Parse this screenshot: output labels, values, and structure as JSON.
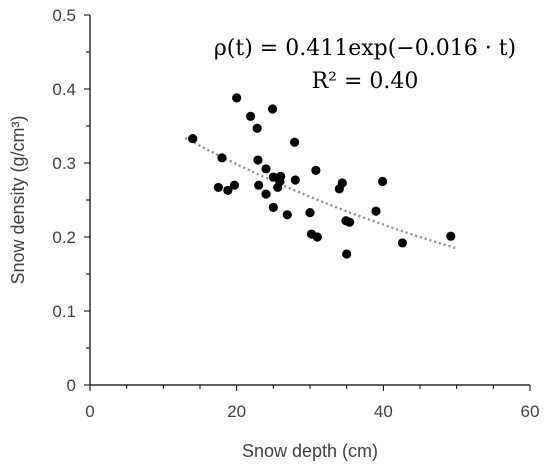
{
  "chart_data": {
    "type": "scatter",
    "xlabel": "Snow depth (cm)",
    "ylabel": "Snow density (g/cm³)",
    "xlim": [
      0,
      60
    ],
    "ylim": [
      0,
      0.5
    ],
    "x_ticks": [
      "0",
      "20",
      "40",
      "60"
    ],
    "y_ticks": [
      "0",
      "0.1",
      "0.2",
      "0.3",
      "0.4",
      "0.5"
    ],
    "grid": false,
    "annotations": [
      "ρ(t) = 0.411exp(−0.016 · t)",
      "R² = 0.40"
    ],
    "trendline": {
      "kind": "exponential",
      "a": 0.411,
      "b": -0.016,
      "x_range": [
        13,
        50
      ],
      "style": "dotted"
    },
    "points": [
      {
        "x": 14.0,
        "y": 0.333
      },
      {
        "x": 17.5,
        "y": 0.267
      },
      {
        "x": 18.0,
        "y": 0.307
      },
      {
        "x": 18.8,
        "y": 0.263
      },
      {
        "x": 19.7,
        "y": 0.27
      },
      {
        "x": 20.0,
        "y": 0.388
      },
      {
        "x": 21.9,
        "y": 0.363
      },
      {
        "x": 22.8,
        "y": 0.347
      },
      {
        "x": 22.9,
        "y": 0.304
      },
      {
        "x": 23.0,
        "y": 0.27
      },
      {
        "x": 24.0,
        "y": 0.292
      },
      {
        "x": 24.0,
        "y": 0.258
      },
      {
        "x": 24.9,
        "y": 0.373
      },
      {
        "x": 25.0,
        "y": 0.281
      },
      {
        "x": 25.0,
        "y": 0.24
      },
      {
        "x": 25.6,
        "y": 0.267
      },
      {
        "x": 25.9,
        "y": 0.275
      },
      {
        "x": 26.0,
        "y": 0.282
      },
      {
        "x": 26.9,
        "y": 0.23
      },
      {
        "x": 27.9,
        "y": 0.328
      },
      {
        "x": 28.0,
        "y": 0.277
      },
      {
        "x": 30.0,
        "y": 0.233
      },
      {
        "x": 30.2,
        "y": 0.204
      },
      {
        "x": 30.8,
        "y": 0.29
      },
      {
        "x": 31.0,
        "y": 0.2
      },
      {
        "x": 34.0,
        "y": 0.265
      },
      {
        "x": 34.4,
        "y": 0.273
      },
      {
        "x": 34.9,
        "y": 0.222
      },
      {
        "x": 35.0,
        "y": 0.177
      },
      {
        "x": 35.4,
        "y": 0.22
      },
      {
        "x": 39.0,
        "y": 0.235
      },
      {
        "x": 39.9,
        "y": 0.275
      },
      {
        "x": 42.6,
        "y": 0.192
      },
      {
        "x": 49.2,
        "y": 0.201
      }
    ]
  }
}
